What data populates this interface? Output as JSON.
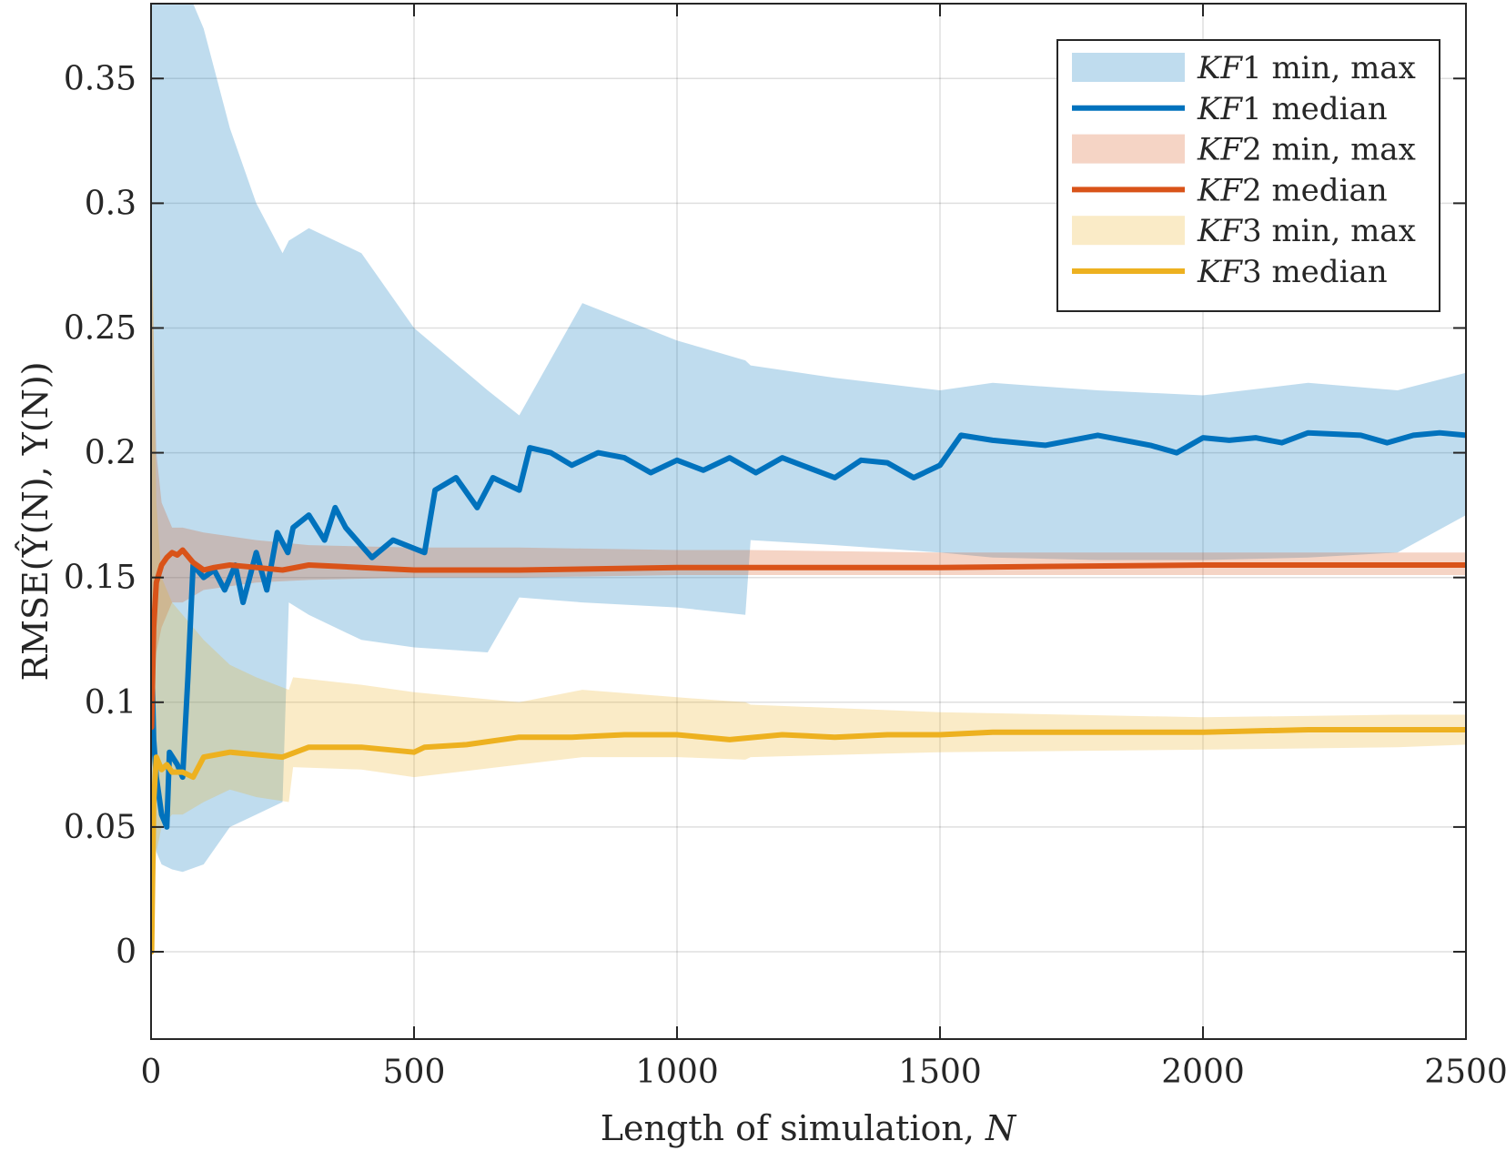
{
  "chart_data": {
    "type": "line",
    "xlabel_text": "Length of simulation, ",
    "xlabel_var": "N",
    "ylabel": "RMSE(Ŷ(N), Y(N))",
    "xlim": [
      0,
      2500
    ],
    "ylim": [
      -0.035,
      0.38
    ],
    "x_ticks": [
      0,
      500,
      1000,
      1500,
      2000,
      2500
    ],
    "y_ticks": [
      0,
      0.05,
      0.1,
      0.15,
      0.2,
      0.25,
      0.3,
      0.35
    ],
    "x_tick_labels": [
      "0",
      "500",
      "1000",
      "1500",
      "2000",
      "2500"
    ],
    "y_tick_labels": [
      "0",
      "0.05",
      "0.1",
      "0.15",
      "0.2",
      "0.25",
      "0.3",
      "0.35"
    ],
    "grid": true,
    "legend_position": "top-right",
    "legend": [
      {
        "kf": "KF",
        "num": "1",
        "text": " min, max",
        "color": "#0072BD",
        "kind": "band"
      },
      {
        "kf": "KF",
        "num": "1",
        "text": " median",
        "color": "#0072BD",
        "kind": "line"
      },
      {
        "kf": "KF",
        "num": "2",
        "text": " min, max",
        "color": "#D95319",
        "kind": "band"
      },
      {
        "kf": "KF",
        "num": "2",
        "text": " median",
        "color": "#D95319",
        "kind": "line"
      },
      {
        "kf": "KF",
        "num": "3",
        "text": " min, max",
        "color": "#EDB120",
        "kind": "band"
      },
      {
        "kf": "KF",
        "num": "3",
        "text": " median",
        "color": "#EDB120",
        "kind": "line"
      }
    ],
    "bands": [
      {
        "name": "KF1 min, max",
        "color": "#0072BD",
        "opacity": 0.25,
        "x": [
          1,
          10,
          20,
          40,
          60,
          100,
          150,
          200,
          250,
          262,
          300,
          400,
          500,
          640,
          700,
          820,
          1000,
          1130,
          1140,
          1300,
          1500,
          1600,
          1800,
          2000,
          2200,
          2370,
          2500
        ],
        "lower": [
          0.05,
          0.04,
          0.035,
          0.033,
          0.032,
          0.035,
          0.05,
          0.055,
          0.06,
          0.14,
          0.135,
          0.125,
          0.122,
          0.12,
          0.142,
          0.14,
          0.138,
          0.135,
          0.165,
          0.163,
          0.16,
          0.158,
          0.157,
          0.157,
          0.158,
          0.16,
          0.175
        ],
        "upper": [
          0.4,
          0.4,
          0.4,
          0.4,
          0.39,
          0.37,
          0.33,
          0.3,
          0.28,
          0.285,
          0.29,
          0.28,
          0.25,
          0.225,
          0.215,
          0.26,
          0.245,
          0.237,
          0.235,
          0.23,
          0.225,
          0.228,
          0.225,
          0.223,
          0.228,
          0.225,
          0.232
        ]
      },
      {
        "name": "KF2 min, max",
        "color": "#D95319",
        "opacity": 0.25,
        "x": [
          1,
          10,
          20,
          40,
          60,
          100,
          200,
          300,
          500,
          700,
          1000,
          1140,
          1500,
          2000,
          2500
        ],
        "lower": [
          0.1,
          0.12,
          0.13,
          0.14,
          0.14,
          0.145,
          0.148,
          0.149,
          0.15,
          0.15,
          0.151,
          0.151,
          0.151,
          0.151,
          0.151
        ],
        "upper": [
          0.28,
          0.2,
          0.18,
          0.17,
          0.17,
          0.168,
          0.165,
          0.163,
          0.162,
          0.162,
          0.161,
          0.161,
          0.16,
          0.16,
          0.16
        ]
      },
      {
        "name": "KF3 min, max",
        "color": "#EDB120",
        "opacity": 0.25,
        "x": [
          1,
          10,
          20,
          40,
          60,
          100,
          150,
          200,
          262,
          270,
          400,
          500,
          700,
          820,
          1000,
          1130,
          1140,
          1500,
          2000,
          2370,
          2500
        ],
        "lower": [
          0.0,
          0.04,
          0.05,
          0.055,
          0.055,
          0.06,
          0.065,
          0.062,
          0.06,
          0.074,
          0.073,
          0.07,
          0.075,
          0.078,
          0.078,
          0.077,
          0.078,
          0.08,
          0.081,
          0.082,
          0.083
        ],
        "upper": [
          0.3,
          0.18,
          0.15,
          0.14,
          0.135,
          0.125,
          0.115,
          0.11,
          0.105,
          0.11,
          0.107,
          0.104,
          0.1,
          0.105,
          0.102,
          0.1,
          0.099,
          0.096,
          0.094,
          0.095,
          0.095
        ]
      }
    ],
    "series": [
      {
        "name": "KF1 median",
        "color": "#0072BD",
        "x": [
          1,
          5,
          10,
          20,
          30,
          35,
          50,
          60,
          70,
          80,
          100,
          120,
          140,
          160,
          175,
          200,
          220,
          240,
          260,
          270,
          300,
          330,
          350,
          370,
          420,
          460,
          520,
          540,
          580,
          620,
          650,
          700,
          720,
          760,
          800,
          850,
          900,
          950,
          1000,
          1050,
          1100,
          1150,
          1200,
          1300,
          1350,
          1400,
          1450,
          1500,
          1540,
          1600,
          1700,
          1800,
          1900,
          1950,
          2000,
          2050,
          2100,
          2150,
          2200,
          2300,
          2350,
          2400,
          2450,
          2500
        ],
        "y": [
          0.12,
          0.085,
          0.07,
          0.055,
          0.05,
          0.08,
          0.075,
          0.07,
          0.11,
          0.155,
          0.15,
          0.153,
          0.145,
          0.155,
          0.14,
          0.16,
          0.145,
          0.168,
          0.16,
          0.17,
          0.175,
          0.165,
          0.178,
          0.17,
          0.158,
          0.165,
          0.16,
          0.185,
          0.19,
          0.178,
          0.19,
          0.185,
          0.202,
          0.2,
          0.195,
          0.2,
          0.198,
          0.192,
          0.197,
          0.193,
          0.198,
          0.192,
          0.198,
          0.19,
          0.197,
          0.196,
          0.19,
          0.195,
          0.207,
          0.205,
          0.203,
          0.207,
          0.203,
          0.2,
          0.206,
          0.205,
          0.206,
          0.204,
          0.208,
          0.207,
          0.204,
          0.207,
          0.208,
          0.207
        ]
      },
      {
        "name": "KF2 median",
        "color": "#D95319",
        "x": [
          1,
          5,
          10,
          20,
          30,
          40,
          50,
          60,
          80,
          100,
          120,
          150,
          200,
          250,
          300,
          400,
          500,
          700,
          1000,
          1500,
          2000,
          2500
        ],
        "y": [
          0.09,
          0.13,
          0.148,
          0.155,
          0.158,
          0.16,
          0.159,
          0.161,
          0.156,
          0.153,
          0.154,
          0.155,
          0.154,
          0.153,
          0.155,
          0.154,
          0.153,
          0.153,
          0.154,
          0.154,
          0.155,
          0.155
        ]
      },
      {
        "name": "KF3 median",
        "color": "#EDB120",
        "x": [
          1,
          5,
          10,
          20,
          30,
          40,
          60,
          80,
          100,
          150,
          200,
          250,
          300,
          400,
          500,
          520,
          600,
          700,
          800,
          900,
          1000,
          1100,
          1200,
          1300,
          1400,
          1500,
          1600,
          1800,
          2000,
          2200,
          2500
        ],
        "y": [
          0.0,
          0.06,
          0.078,
          0.073,
          0.075,
          0.072,
          0.072,
          0.07,
          0.078,
          0.08,
          0.079,
          0.078,
          0.082,
          0.082,
          0.08,
          0.082,
          0.083,
          0.086,
          0.086,
          0.087,
          0.087,
          0.085,
          0.087,
          0.086,
          0.087,
          0.087,
          0.088,
          0.088,
          0.088,
          0.089,
          0.089
        ]
      }
    ]
  }
}
